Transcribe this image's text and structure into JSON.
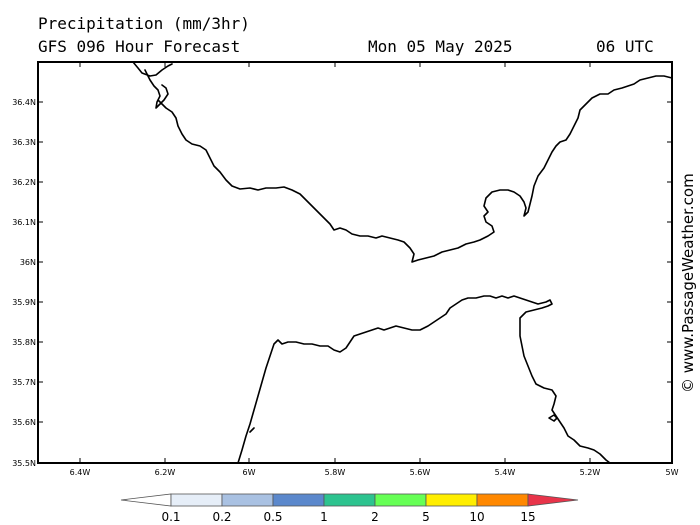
{
  "header": {
    "title": "Precipitation (mm/3hr)",
    "subtitle": "GFS 096 Hour Forecast",
    "date": "Mon 05 May 2025",
    "hour": "06 UTC"
  },
  "map": {
    "lat_labels": [
      "36.4N",
      "36.3N",
      "36.2N",
      "36.1N",
      "36N",
      "35.9N",
      "35.8N",
      "35.7N",
      "35.6N",
      "35.5N"
    ],
    "lon_labels": [
      "6.4W",
      "6.2W",
      "6W",
      "5.8W",
      "5.6W",
      "5.4W",
      "5.2W",
      "5W"
    ],
    "coast_color": "#000000"
  },
  "credit": "© www.PassageWeather.com",
  "legend": {
    "labels": [
      "0.1",
      "0.2",
      "0.5",
      "1",
      "2",
      "5",
      "10",
      "15"
    ],
    "colors": [
      "#ffffff",
      "#e6eef8",
      "#a9c1e2",
      "#5b88cc",
      "#2dc38f",
      "#66ff55",
      "#ffee00",
      "#ff8800",
      "#e8344a"
    ]
  }
}
